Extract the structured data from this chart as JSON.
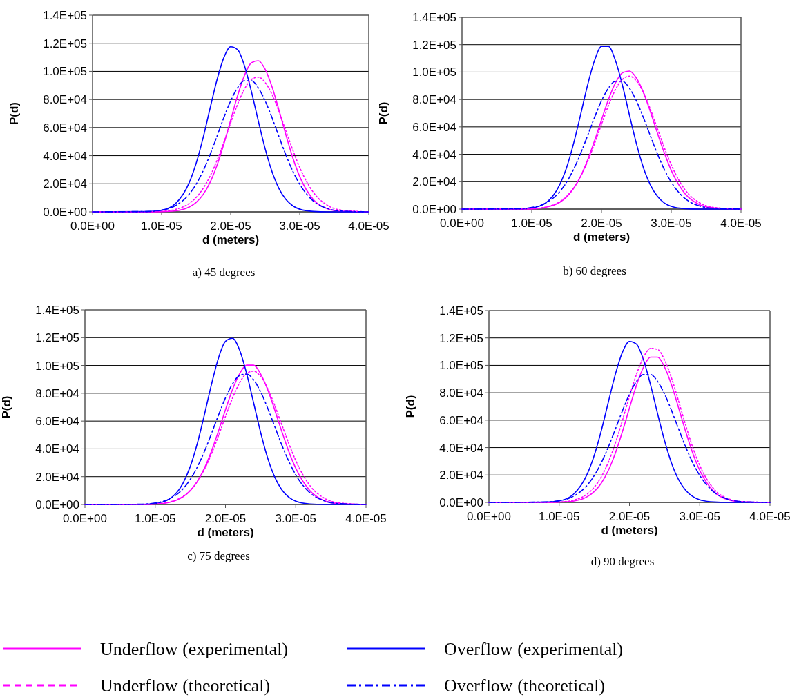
{
  "chart_data": [
    {
      "type": "line",
      "title": "a) 45 degrees",
      "xlabel": "d (meters)",
      "ylabel": "P(d)",
      "grid": "y",
      "legend": "bottom",
      "xlim": [
        0,
        4e-05
      ],
      "xticks": [
        {
          "value": 0,
          "label": "0.0E+00"
        },
        {
          "value": 1e-05,
          "label": "1.0E-05"
        },
        {
          "value": 2e-05,
          "label": "2.0E-05"
        },
        {
          "value": 3e-05,
          "label": "3.0E-05"
        },
        {
          "value": 4e-05,
          "label": "4.0E-05"
        }
      ],
      "ylim": [
        0,
        140000
      ],
      "yticks": [
        {
          "value": 0,
          "label": "0.0E+00"
        },
        {
          "value": 20000,
          "label": "2.0E+04"
        },
        {
          "value": 40000,
          "label": "4.0E+04"
        },
        {
          "value": 60000,
          "label": "6.0E+04"
        },
        {
          "value": 80000,
          "label": "8.0E+04"
        },
        {
          "value": 100000,
          "label": "1.0E+05"
        },
        {
          "value": 120000,
          "label": "1.2E+05"
        },
        {
          "value": 140000,
          "label": "1.4E+05"
        }
      ],
      "x": [
        0,
        8e-06,
        1e-05,
        1.2e-05,
        1.4e-05,
        1.5e-05,
        1.6e-05,
        1.7e-05,
        1.8e-05,
        1.9e-05,
        2e-05,
        2.1e-05,
        2.2e-05,
        2.3e-05,
        2.4e-05,
        2.5e-05,
        2.6e-05,
        2.7e-05,
        2.8e-05,
        2.9e-05,
        3e-05,
        3.2e-05,
        3.4e-05,
        3.6e-05,
        4e-05
      ],
      "series": [
        {
          "name": "Underflow (experimental)",
          "color": "#ff00ff",
          "line_style": "solid",
          "values": [
            0,
            0,
            100,
            700,
            3400,
            6700,
            12200,
            20800,
            32800,
            48000,
            65300,
            82600,
            97100,
            106100,
            107600,
            101500,
            88900,
            72400,
            54800,
            38500,
            25100,
            8600,
            2200,
            400,
            0
          ]
        },
        {
          "name": "Overflow (experimental)",
          "color": "#0000ff",
          "line_style": "solid",
          "values": [
            0,
            200,
            1100,
            5800,
            20800,
            34500,
            52500,
            73300,
            93600,
            109600,
            117500,
            115500,
            104000,
            85800,
            64800,
            44900,
            28500,
            16500,
            8800,
            4300,
            1900,
            300,
            0,
            0,
            0
          ]
        },
        {
          "name": "Underflow (theoretical)",
          "color": "#ff00ff",
          "line_style": "dotted",
          "values": [
            0,
            100,
            400,
            1700,
            6000,
            10200,
            16600,
            25200,
            36300,
            49300,
            63300,
            76500,
            87400,
            94200,
            95900,
            92100,
            83500,
            71400,
            57600,
            44000,
            31600,
            13700,
            4700,
            1300,
            0
          ]
        },
        {
          "name": "Overflow (theoretical)",
          "color": "#0000ff",
          "line_style": "dashed",
          "values": [
            0,
            300,
            1200,
            4400,
            12600,
            19700,
            29000,
            40500,
            53500,
            66900,
            79000,
            88300,
            93300,
            93300,
            88300,
            79000,
            66900,
            53500,
            40500,
            29000,
            19700,
            7600,
            2400,
            600,
            0
          ]
        }
      ]
    },
    {
      "type": "line",
      "title": "b) 60 degrees",
      "xlabel": "d (meters)",
      "ylabel": "P(d)",
      "grid": "y",
      "xlim": [
        0,
        4e-05
      ],
      "xticks": [
        {
          "value": 0,
          "label": "0.0E+00"
        },
        {
          "value": 1e-05,
          "label": "1.0E-05"
        },
        {
          "value": 2e-05,
          "label": "2.0E-05"
        },
        {
          "value": 3e-05,
          "label": "3.0E-05"
        },
        {
          "value": 4e-05,
          "label": "4.0E-05"
        }
      ],
      "ylim": [
        0,
        140000
      ],
      "yticks": [
        {
          "value": 0,
          "label": "0.0E+00"
        },
        {
          "value": 20000,
          "label": "2.0E+04"
        },
        {
          "value": 40000,
          "label": "4.0E+04"
        },
        {
          "value": 60000,
          "label": "6.0E+04"
        },
        {
          "value": 80000,
          "label": "8.0E+04"
        },
        {
          "value": 100000,
          "label": "1.0E+05"
        },
        {
          "value": 120000,
          "label": "1.2E+05"
        },
        {
          "value": 140000,
          "label": "1.4E+05"
        }
      ],
      "x": [
        0,
        8e-06,
        1e-05,
        1.2e-05,
        1.4e-05,
        1.5e-05,
        1.6e-05,
        1.7e-05,
        1.8e-05,
        1.9e-05,
        2e-05,
        2.1e-05,
        2.2e-05,
        2.3e-05,
        2.4e-05,
        2.5e-05,
        2.6e-05,
        2.7e-05,
        2.8e-05,
        2.9e-05,
        3e-05,
        3.2e-05,
        3.4e-05,
        3.6e-05,
        4e-05
      ],
      "series": [
        {
          "color": "#ff00ff",
          "line_style": "solid",
          "values": [
            0,
            0,
            200,
            1300,
            4900,
            8900,
            15100,
            23900,
            35700,
            49800,
            65100,
            80000,
            92100,
            99400,
            100700,
            95700,
            85300,
            71200,
            55800,
            41100,
            28300,
            11100,
            3400,
            800,
            0
          ]
        },
        {
          "color": "#0000ff",
          "line_style": "solid",
          "values": [
            0,
            100,
            800,
            4500,
            17700,
            30400,
            47900,
            68800,
            90400,
            108400,
            118700,
            118700,
            108400,
            90400,
            68800,
            47900,
            30400,
            17700,
            9400,
            4500,
            2000,
            300,
            0,
            0,
            0
          ]
        },
        {
          "color": "#ff00ff",
          "line_style": "dotted",
          "values": [
            0,
            100,
            300,
            1500,
            5300,
            9300,
            15300,
            23700,
            34600,
            47700,
            61800,
            75600,
            87200,
            94700,
            97000,
            93600,
            85200,
            73000,
            59000,
            44900,
            32300,
            13900,
            4800,
            1300,
            0
          ]
        },
        {
          "color": "#0000ff",
          "line_style": "dashed",
          "values": [
            0,
            300,
            1200,
            4400,
            12600,
            19700,
            29000,
            40500,
            53500,
            66900,
            79000,
            88300,
            93300,
            93300,
            88300,
            79000,
            66900,
            53500,
            40500,
            29000,
            19700,
            7600,
            2400,
            600,
            0
          ]
        }
      ]
    },
    {
      "type": "line",
      "title": "c) 75 degrees",
      "xlabel": "d (meters)",
      "ylabel": "P(d)",
      "grid": "y",
      "xlim": [
        0,
        4e-05
      ],
      "xticks": [
        {
          "value": 0,
          "label": "0.0E+00"
        },
        {
          "value": 1e-05,
          "label": "1.0E-05"
        },
        {
          "value": 2e-05,
          "label": "2.0E-05"
        },
        {
          "value": 3e-05,
          "label": "3.0E-05"
        },
        {
          "value": 4e-05,
          "label": "4.0E-05"
        }
      ],
      "ylim": [
        0,
        140000
      ],
      "yticks": [
        {
          "value": 0,
          "label": "0.0E+00"
        },
        {
          "value": 20000,
          "label": "2.0E+04"
        },
        {
          "value": 40000,
          "label": "4.0E+04"
        },
        {
          "value": 60000,
          "label": "6.0E+04"
        },
        {
          "value": 80000,
          "label": "8.0E+04"
        },
        {
          "value": 100000,
          "label": "1.0E+05"
        },
        {
          "value": 120000,
          "label": "1.2E+05"
        },
        {
          "value": 140000,
          "label": "1.4E+05"
        }
      ],
      "x": [
        0,
        8e-06,
        1e-05,
        1.2e-05,
        1.4e-05,
        1.5e-05,
        1.6e-05,
        1.7e-05,
        1.8e-05,
        1.9e-05,
        2e-05,
        2.1e-05,
        2.2e-05,
        2.3e-05,
        2.4e-05,
        2.5e-05,
        2.6e-05,
        2.7e-05,
        2.8e-05,
        2.9e-05,
        3e-05,
        3.2e-05,
        3.4e-05,
        3.6e-05,
        4e-05
      ],
      "series": [
        {
          "color": "#ff00ff",
          "line_style": "solid",
          "values": [
            0,
            0,
            300,
            1500,
            5600,
            10000,
            16600,
            26100,
            38300,
            52800,
            68200,
            82700,
            93900,
            100200,
            100200,
            93900,
            82700,
            68200,
            52800,
            38300,
            26100,
            10000,
            2900,
            700,
            0
          ]
        },
        {
          "color": "#0000ff",
          "line_style": "solid",
          "values": [
            0,
            100,
            700,
            3900,
            15700,
            27500,
            44100,
            64500,
            86200,
            105300,
            117400,
            119500,
            111200,
            94400,
            73200,
            51900,
            33500,
            19800,
            10700,
            5300,
            2400,
            400,
            0,
            0,
            0
          ]
        },
        {
          "color": "#ff00ff",
          "line_style": "dotted",
          "values": [
            0,
            100,
            400,
            1700,
            6000,
            10200,
            16600,
            25200,
            36300,
            49300,
            63300,
            76500,
            87400,
            94200,
            95900,
            92100,
            83500,
            71400,
            57600,
            44000,
            31600,
            13700,
            4700,
            1300,
            0
          ]
        },
        {
          "color": "#0000ff",
          "line_style": "dashed",
          "values": [
            0,
            200,
            1100,
            3900,
            11500,
            18100,
            27000,
            38100,
            50900,
            64200,
            76700,
            86700,
            92700,
            93800,
            89700,
            81100,
            69400,
            56200,
            43000,
            31200,
            21300,
            8500,
            2700,
            700,
            0
          ]
        }
      ]
    },
    {
      "type": "line",
      "title": "d) 90 degrees",
      "xlabel": "d (meters)",
      "ylabel": "P(d)",
      "grid": "y",
      "xlim": [
        0,
        4e-05
      ],
      "xticks": [
        {
          "value": 0,
          "label": "0.0E+00"
        },
        {
          "value": 1e-05,
          "label": "1.0E-05"
        },
        {
          "value": 2e-05,
          "label": "2.0E-05"
        },
        {
          "value": 3e-05,
          "label": "3.0E-05"
        },
        {
          "value": 4e-05,
          "label": "4.0E-05"
        }
      ],
      "ylim": [
        0,
        140000
      ],
      "yticks": [
        {
          "value": 0,
          "label": "0.0E+00"
        },
        {
          "value": 20000,
          "label": "2.0E+04"
        },
        {
          "value": 40000,
          "label": "4.0E+04"
        },
        {
          "value": 60000,
          "label": "6.0E+04"
        },
        {
          "value": 80000,
          "label": "8.0E+04"
        },
        {
          "value": 100000,
          "label": "1.0E+05"
        },
        {
          "value": 120000,
          "label": "1.2E+05"
        },
        {
          "value": 140000,
          "label": "1.4E+05"
        }
      ],
      "x": [
        0,
        8e-06,
        1e-05,
        1.2e-05,
        1.4e-05,
        1.5e-05,
        1.6e-05,
        1.7e-05,
        1.8e-05,
        1.9e-05,
        2e-05,
        2.1e-05,
        2.2e-05,
        2.3e-05,
        2.4e-05,
        2.5e-05,
        2.6e-05,
        2.7e-05,
        2.8e-05,
        2.9e-05,
        3e-05,
        3.2e-05,
        3.4e-05,
        3.6e-05,
        4e-05
      ],
      "series": [
        {
          "color": "#ff00ff",
          "line_style": "solid",
          "values": [
            0,
            0,
            200,
            900,
            4200,
            8000,
            14100,
            23400,
            36000,
            51700,
            68900,
            85500,
            98700,
            106000,
            106000,
            98700,
            85500,
            68900,
            51700,
            36000,
            23400,
            8000,
            2000,
            400,
            0
          ]
        },
        {
          "color": "#0000ff",
          "line_style": "solid",
          "values": [
            0,
            200,
            1100,
            5800,
            20800,
            34500,
            52500,
            73300,
            93600,
            109600,
            117500,
            115500,
            104000,
            85800,
            64800,
            44900,
            28500,
            16500,
            8800,
            4300,
            1900,
            300,
            0,
            0,
            0
          ]
        },
        {
          "color": "#ff00ff",
          "line_style": "dotted",
          "values": [
            0,
            0,
            300,
            1600,
            6200,
            11100,
            18700,
            29400,
            43300,
            59800,
            77300,
            93500,
            105900,
            112400,
            111700,
            103900,
            90500,
            73800,
            56400,
            40300,
            27000,
            9900,
            2800,
            600,
            0
          ]
        },
        {
          "color": "#0000ff",
          "line_style": "dashed",
          "values": [
            0,
            300,
            1200,
            4400,
            12600,
            19700,
            29000,
            40500,
            53500,
            66900,
            79000,
            88300,
            93300,
            93300,
            88300,
            79000,
            66900,
            53500,
            40500,
            29000,
            19700,
            7600,
            2400,
            600,
            0
          ]
        }
      ]
    }
  ]
}
